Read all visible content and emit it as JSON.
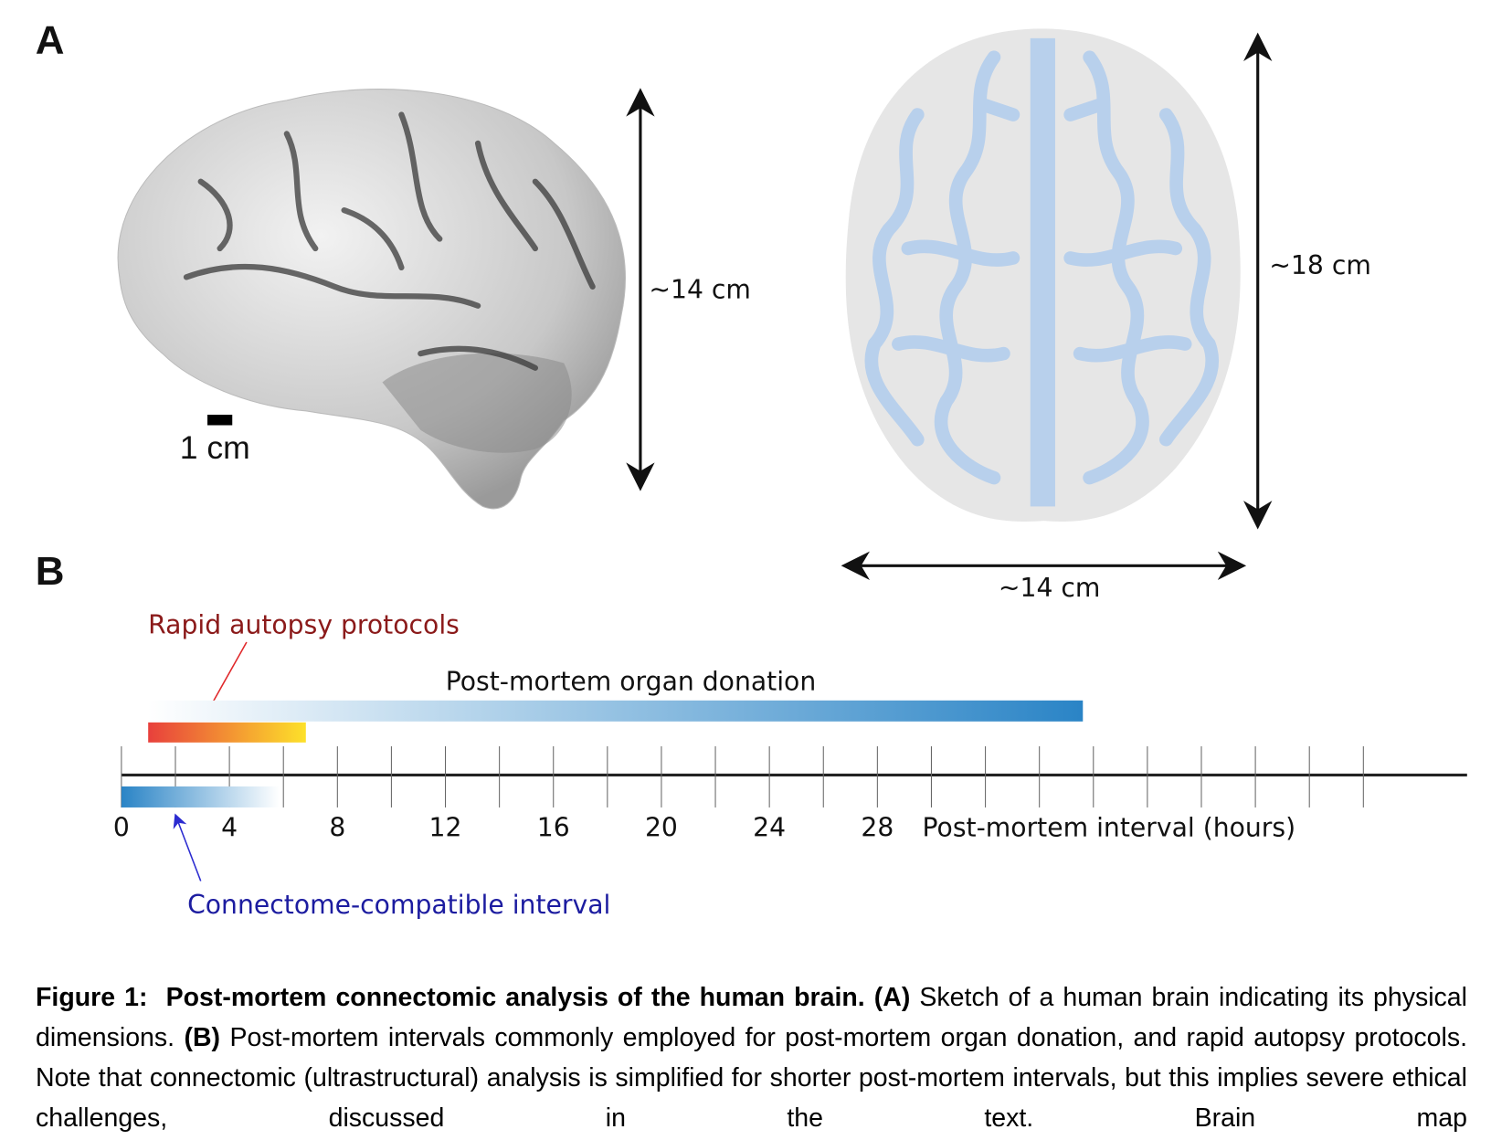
{
  "panel_a": {
    "label": "A",
    "lateral_height": "~14 cm",
    "scale_bar": "1 cm",
    "top_height": "~18 cm",
    "top_width": "~14 cm"
  },
  "panel_b": {
    "label": "B",
    "rapid_autopsy": "Rapid autopsy protocols",
    "organ_donation": "Post-mortem organ donation",
    "axis_ticks": [
      0,
      4,
      8,
      12,
      16,
      20,
      24,
      28
    ],
    "axis_title": "Post-mortem interval (hours)",
    "connectome": "Connectome-compatible interval"
  },
  "caption": {
    "figure_label": "Figure 1:",
    "title": "Post-mortem connectomic analysis of the human brain.",
    "a_label": "(A)",
    "a_text": "Sketch of a human brain indicating its physical dimensions.",
    "b_label": "(B)",
    "b_text": "Post-mortem intervals commonly employed for post-mortem organ donation, and rapid autopsy protocols. Note that connectomic (ultrastructural) analysis is simplified for shorter post-mortem intervals, but this implies severe ethical challenges, discussed in the text. Brain map"
  }
}
